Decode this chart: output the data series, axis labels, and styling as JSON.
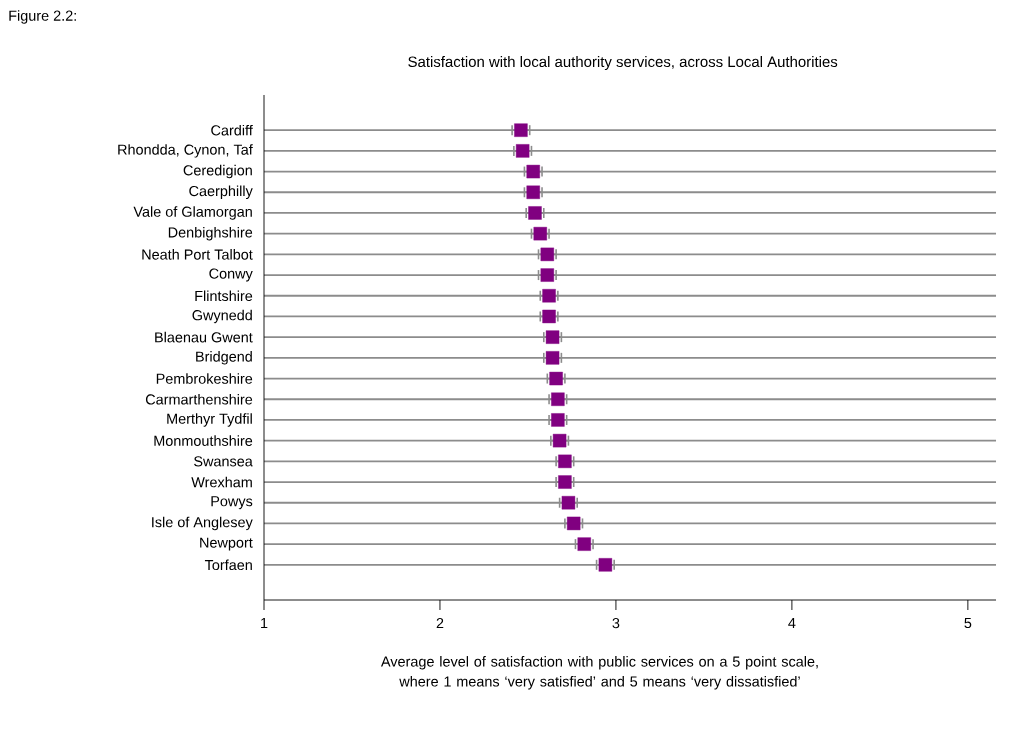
{
  "chart_data": {
    "type": "scatter",
    "orientation": "horizontal",
    "title": "Satisfaction with local authority services, across Local Authorities",
    "xlabel": "Average level of satisfaction with public services on a 5 point scale, where 1 means ‘very satisfied’ and 5 means ‘very dissatisfied’",
    "annotations": [
      "Figure 2.2:"
    ],
    "categories": [
      "Cardiff",
      "Rhondda, Cynon, Taf",
      "Ceredigion",
      "Caerphilly",
      "Vale of Glamorgan",
      "Denbighshire",
      "Neath Port Talbot",
      "Conwy",
      "Flintshire",
      "Gwynedd",
      "Blaenau Gwent",
      "Bridgend",
      "Pembrokeshire",
      "Carmarthenshire",
      "Merthyr Tydfil",
      "Monmouthshire",
      "Swansea",
      "Wrexham",
      "Powys",
      "Isle of Anglesey",
      "Newport",
      "Torfaen"
    ],
    "values": [
      2.46,
      2.47,
      2.53,
      2.53,
      2.54,
      2.57,
      2.61,
      2.61,
      2.62,
      2.62,
      2.64,
      2.64,
      2.66,
      2.67,
      2.67,
      2.68,
      2.71,
      2.71,
      2.73,
      2.76,
      2.82,
      2.94
    ],
    "errors": [
      0.05,
      0.05,
      0.05,
      0.05,
      0.05,
      0.05,
      0.05,
      0.05,
      0.05,
      0.05,
      0.05,
      0.05,
      0.05,
      0.05,
      0.05,
      0.05,
      0.05,
      0.05,
      0.05,
      0.05,
      0.05,
      0.05
    ],
    "color": "#800080",
    "marker": "square",
    "grid": "y",
    "xlim": [
      1,
      5.16
    ],
    "xticks": [
      1,
      2,
      3,
      4,
      5
    ]
  }
}
